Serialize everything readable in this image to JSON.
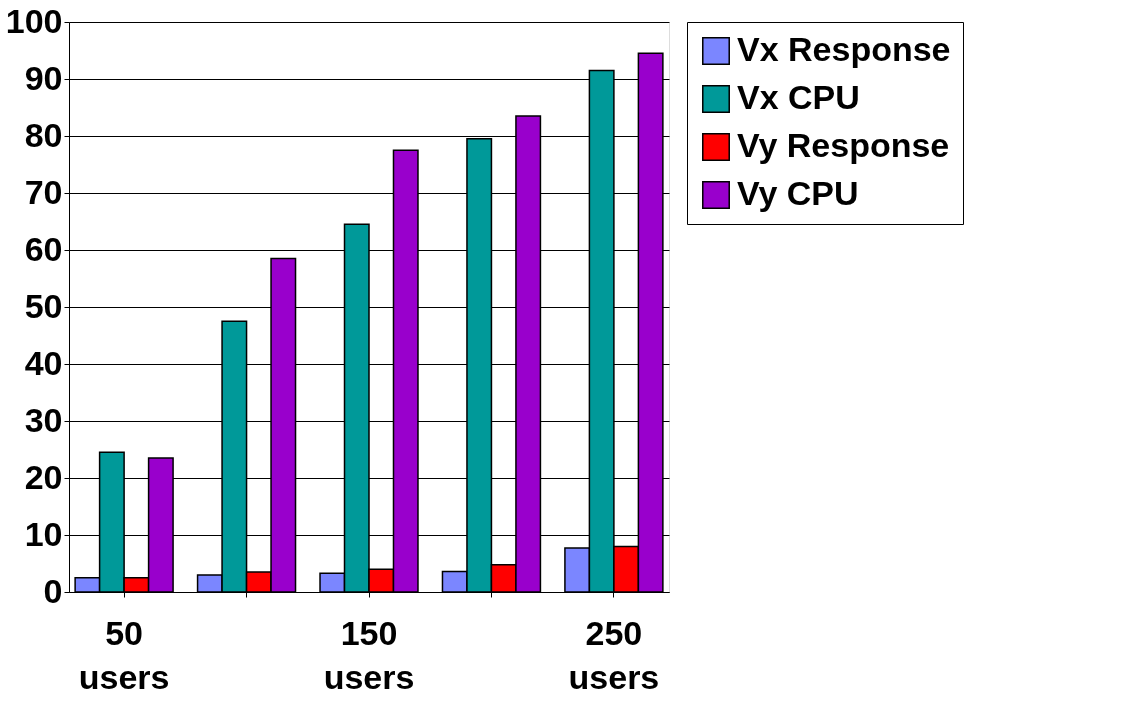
{
  "chart_data": {
    "type": "bar",
    "categories": [
      "50 users",
      null,
      "150 users",
      null,
      "250 users"
    ],
    "series": [
      {
        "name": "Vx Response",
        "color": "#7b86ff",
        "values": [
          2.5,
          3,
          3.3,
          3.6,
          7.7
        ]
      },
      {
        "name": "Vx CPU",
        "color": "#009999",
        "values": [
          24.5,
          47.5,
          64.5,
          79.5,
          91.5
        ]
      },
      {
        "name": "Vy Response",
        "color": "#ff0000",
        "values": [
          2.5,
          3.5,
          4,
          4.8,
          8
        ]
      },
      {
        "name": "Vy CPU",
        "color": "#9900cc",
        "values": [
          23.5,
          58.5,
          77.5,
          83.5,
          94.5
        ]
      }
    ],
    "ylim": [
      0,
      100
    ],
    "yticks": [
      0,
      10,
      20,
      30,
      40,
      50,
      60,
      70,
      80,
      90,
      100
    ],
    "grid": "y",
    "legend": "right"
  }
}
